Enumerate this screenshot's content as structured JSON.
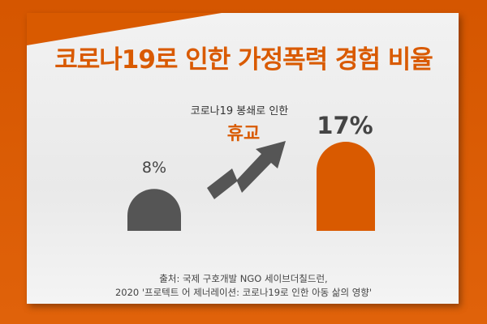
{
  "chart_data": {
    "type": "bar",
    "title": "코로나19로 인한 가정폭력 경험 비율",
    "categories": [
      "",
      ""
    ],
    "values": [
      8,
      17
    ],
    "data_labels": [
      "8%",
      "17%"
    ],
    "annotation": {
      "line1": "코로나19 봉쇄로 인한",
      "line2": "휴교"
    },
    "colors": [
      "#555555",
      "#d95a00"
    ],
    "grid": false
  },
  "source": {
    "line1": "출처: 국제 구호개발 NGO 세이브더칠드런,",
    "line2": "2020 '프로텍트 어 제너레이션: 코로나19로 인한 아동 삶의 영향'"
  },
  "colors": {
    "accent": "#d95a00",
    "paper": "#eeeeee",
    "arrow": "#555555"
  }
}
